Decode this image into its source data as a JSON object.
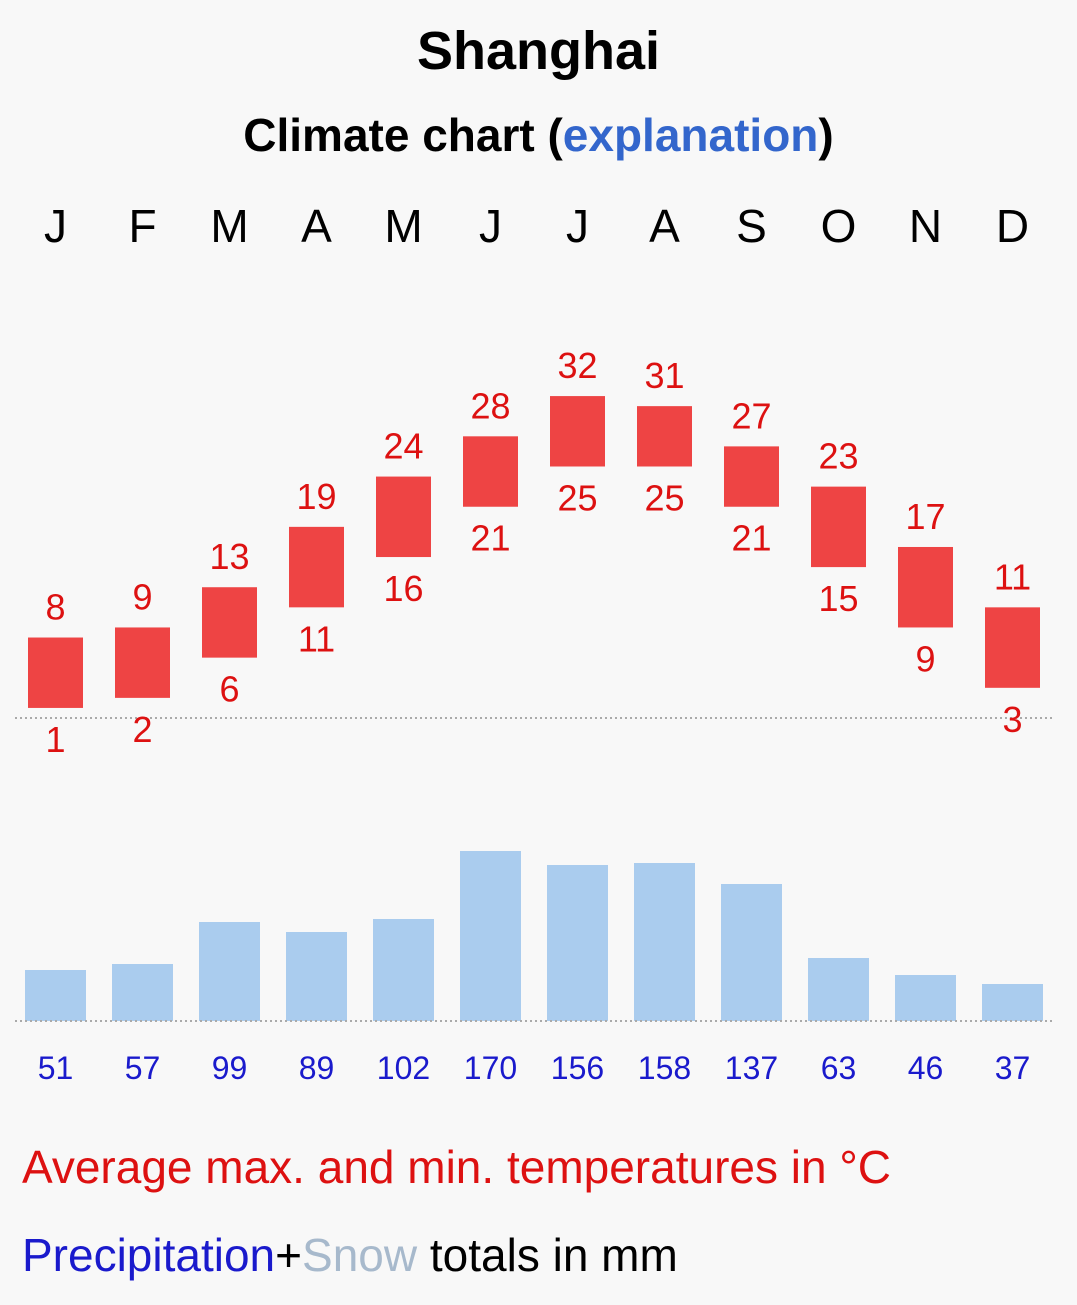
{
  "title": "Shanghai",
  "subtitle": {
    "prefix": "Climate chart (",
    "link": "explanation",
    "suffix": ")"
  },
  "legend": {
    "temperature": "Average max. and min. temperatures in °C",
    "precip_label": "Precipitation",
    "plus": "+",
    "snow_label": "Snow",
    "totals_text": " totals in mm"
  },
  "colors": {
    "temp_bar": "#ee4444",
    "temp_text": "#dd1111",
    "precip_bar": "#aaccee",
    "precip_text": "#1a1acc",
    "link": "#3366cc"
  },
  "chart_data": {
    "type": "bar",
    "categories": [
      "J",
      "F",
      "M",
      "A",
      "M",
      "J",
      "J",
      "A",
      "S",
      "O",
      "N",
      "D"
    ],
    "series": [
      {
        "name": "Average max. temperature (°C)",
        "values": [
          8,
          9,
          13,
          19,
          24,
          28,
          32,
          31,
          27,
          23,
          17,
          11
        ]
      },
      {
        "name": "Average min. temperature (°C)",
        "values": [
          1,
          2,
          6,
          11,
          16,
          21,
          25,
          25,
          21,
          15,
          9,
          3
        ]
      },
      {
        "name": "Precipitation (mm)",
        "values": [
          51,
          57,
          99,
          89,
          102,
          170,
          156,
          158,
          137,
          63,
          46,
          37
        ]
      }
    ],
    "title": "Shanghai",
    "xlabel": "",
    "ylabel": "",
    "temperature_zero_line": 0
  }
}
